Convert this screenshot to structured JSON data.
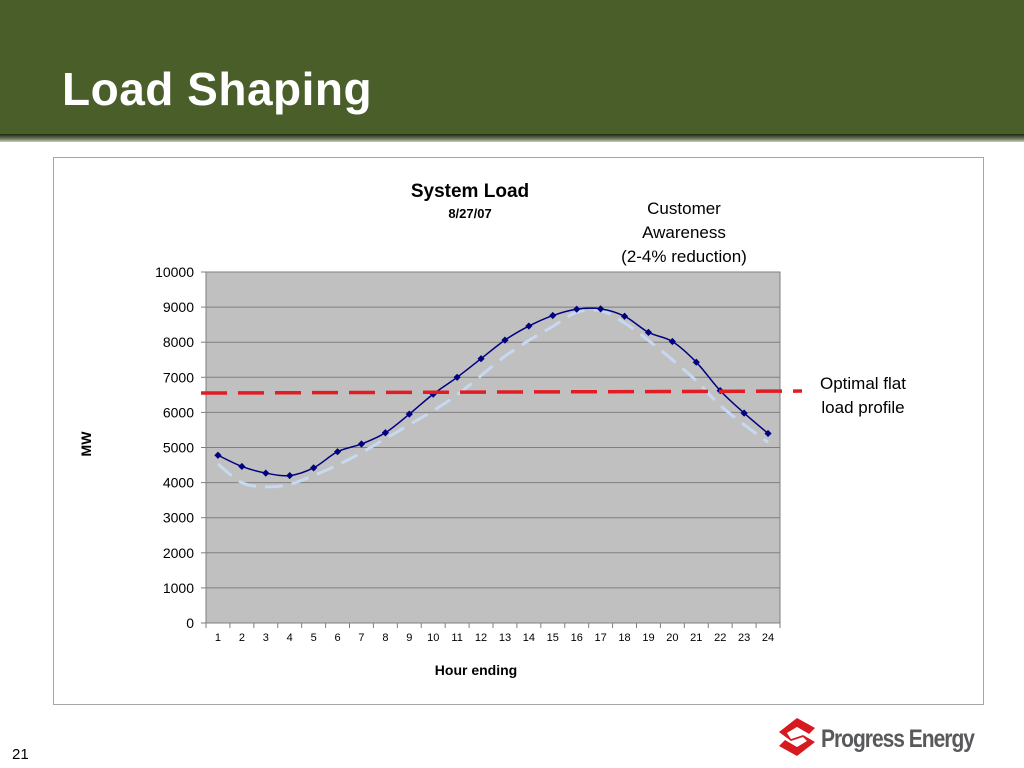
{
  "slide": {
    "title": "Load Shaping",
    "page_number": "21",
    "logo_text": "Progress Energy",
    "colors": {
      "header_bg": "#4a5e29",
      "plot_bg": "#c0c0c0",
      "actual_line": "#000080",
      "shaped_line": "#c6d9f1",
      "flat_line": "#e31b23",
      "logo_red": "#d71920",
      "logo_gray": "#58595b"
    },
    "icons": [
      "progress-energy-logo-icon"
    ]
  },
  "chart_data": {
    "type": "line",
    "title": "System Load",
    "subtitle": "8/27/07",
    "xlabel": "Hour ending",
    "ylabel": "MW",
    "ylim": [
      0,
      10000
    ],
    "y_ticks": [
      0,
      1000,
      2000,
      3000,
      4000,
      5000,
      6000,
      7000,
      8000,
      9000,
      10000
    ],
    "categories": [
      "1",
      "2",
      "3",
      "4",
      "5",
      "6",
      "7",
      "8",
      "9",
      "10",
      "11",
      "12",
      "13",
      "14",
      "15",
      "16",
      "17",
      "18",
      "19",
      "20",
      "21",
      "22",
      "23",
      "24"
    ],
    "grid": true,
    "legend": "none",
    "series": [
      {
        "style": "solid line with diamond markers",
        "values": [
          4780,
          4460,
          4270,
          4200,
          4420,
          4880,
          5100,
          5420,
          5950,
          6520,
          7000,
          7530,
          8060,
          8460,
          8760,
          8940,
          8950,
          8740,
          8280,
          8020,
          7430,
          6620,
          5980,
          5400
        ]
      },
      {
        "style": "dashed light blue",
        "values": [
          4530,
          4000,
          3880,
          3950,
          4200,
          4500,
          4850,
          5250,
          5650,
          6050,
          6500,
          7050,
          7600,
          8050,
          8450,
          8850,
          8900,
          8550,
          8050,
          7500,
          6900,
          6200,
          5650,
          5150
        ]
      },
      {
        "style": "dashed red flat",
        "values": [
          6580,
          6580,
          6580,
          6580,
          6580,
          6580,
          6580,
          6580,
          6580,
          6580,
          6580,
          6580,
          6580,
          6580,
          6580,
          6580,
          6580,
          6580,
          6580,
          6580,
          6580,
          6580,
          6580,
          6580
        ]
      }
    ],
    "annotations": [
      {
        "lines": [
          "Customer",
          "Awareness",
          "(2-4% reduction)"
        ]
      },
      {
        "lines": [
          "Optimal flat",
          "load profile"
        ]
      }
    ]
  }
}
